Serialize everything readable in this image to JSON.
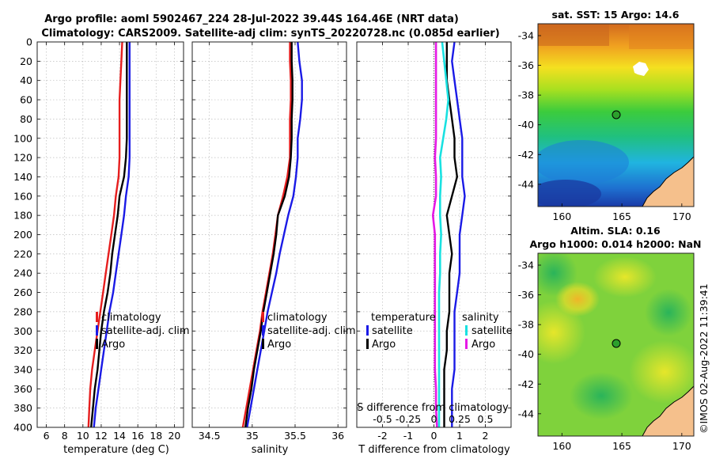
{
  "figure": {
    "title_line1": "Argo profile: aoml 5902467_224 28-Jul-2022 39.44S 164.46E (NRT data)",
    "title_line2": "Climatology: CARS2009. Satellite-adj clim: synTS_20220728.nc (0.085d earlier)",
    "watermark": "©IMOS 02-Aug-2022 11:39:41"
  },
  "colors": {
    "climatology": "#e61e1e",
    "satellite": "#1a1ae6",
    "argo": "#000000",
    "salinity_satellite": "#19e1e1",
    "salinity_argo": "#e619e6"
  },
  "chart_data": [
    {
      "type": "line",
      "name": "temperature",
      "xlabel": "temperature (deg C)",
      "xlim": [
        5,
        21
      ],
      "xticks": [
        6,
        8,
        10,
        12,
        14,
        16,
        18,
        20
      ],
      "ylim": [
        0,
        400
      ],
      "yticks": [
        0,
        20,
        40,
        60,
        80,
        100,
        120,
        140,
        160,
        180,
        200,
        220,
        240,
        260,
        280,
        300,
        320,
        340,
        360,
        380,
        400
      ],
      "y_reversed": true,
      "legend": [
        "climatology",
        "satellite-adj. clim",
        "Argo"
      ],
      "legend_position": "lower-center",
      "series": [
        {
          "name": "climatology",
          "color": "#e61e1e",
          "x": [
            14.3,
            14.2,
            14.1,
            14.0,
            14.0,
            14.0,
            14.0,
            13.9,
            13.6,
            13.4,
            13.1,
            12.8,
            12.5,
            12.2,
            11.9,
            11.6,
            11.3,
            11.0,
            10.8,
            10.7,
            10.6
          ],
          "y": [
            0,
            20,
            40,
            60,
            80,
            100,
            120,
            140,
            160,
            180,
            200,
            220,
            240,
            260,
            280,
            300,
            320,
            340,
            360,
            380,
            400
          ]
        },
        {
          "name": "satellite-adj. clim",
          "color": "#1a1ae6",
          "x": [
            15.1,
            15.1,
            15.1,
            15.1,
            15.1,
            15.1,
            15.1,
            15.0,
            14.7,
            14.5,
            14.2,
            13.9,
            13.6,
            13.3,
            12.9,
            12.6,
            12.3,
            12.0,
            11.7,
            11.4,
            11.2
          ],
          "y": [
            0,
            20,
            40,
            60,
            80,
            100,
            120,
            140,
            160,
            180,
            200,
            220,
            240,
            260,
            280,
            300,
            320,
            340,
            360,
            380,
            400
          ]
        },
        {
          "name": "Argo",
          "color": "#000000",
          "x": [
            14.8,
            14.8,
            14.8,
            14.8,
            14.8,
            14.8,
            14.7,
            14.5,
            14.0,
            13.8,
            13.5,
            13.2,
            13.0,
            12.7,
            12.3,
            12.0,
            11.8,
            11.6,
            11.3,
            11.1,
            10.9
          ],
          "y": [
            0,
            20,
            40,
            60,
            80,
            100,
            120,
            140,
            160,
            180,
            200,
            220,
            240,
            260,
            280,
            300,
            320,
            340,
            360,
            380,
            400
          ]
        }
      ]
    },
    {
      "type": "line",
      "name": "salinity",
      "xlabel": "salinity",
      "xlim": [
        34.3,
        36.1
      ],
      "xticks": [
        34.5,
        35,
        35.5,
        36
      ],
      "xtick_labels": [
        "34.5",
        "35",
        "35.5",
        "36"
      ],
      "ylim": [
        0,
        400
      ],
      "y_reversed": true,
      "legend": [
        "climatology",
        "satellite-adj. clim",
        "Argo"
      ],
      "legend_position": "lower-center",
      "series": [
        {
          "name": "climatology",
          "color": "#e61e1e",
          "x": [
            35.44,
            35.44,
            35.45,
            35.45,
            35.44,
            35.44,
            35.44,
            35.41,
            35.36,
            35.3,
            35.27,
            35.24,
            35.2,
            35.16,
            35.12,
            35.09,
            35.05,
            35.01,
            34.97,
            34.93,
            34.89
          ],
          "y": [
            0,
            20,
            40,
            60,
            80,
            100,
            120,
            140,
            160,
            180,
            200,
            220,
            240,
            260,
            280,
            300,
            320,
            340,
            360,
            380,
            400
          ]
        },
        {
          "name": "satellite-adj. clim",
          "color": "#1a1ae6",
          "x": [
            35.53,
            35.55,
            35.58,
            35.58,
            35.56,
            35.53,
            35.53,
            35.51,
            35.48,
            35.42,
            35.37,
            35.32,
            35.28,
            35.23,
            35.18,
            35.14,
            35.1,
            35.06,
            35.02,
            34.98,
            34.94
          ],
          "y": [
            0,
            20,
            40,
            60,
            80,
            100,
            120,
            140,
            160,
            180,
            200,
            220,
            240,
            260,
            280,
            300,
            320,
            340,
            360,
            380,
            400
          ]
        },
        {
          "name": "Argo",
          "color": "#000000",
          "x": [
            35.46,
            35.46,
            35.47,
            35.47,
            35.46,
            35.46,
            35.45,
            35.43,
            35.38,
            35.3,
            35.28,
            35.25,
            35.21,
            35.17,
            35.13,
            35.1,
            35.06,
            35.02,
            34.99,
            34.95,
            34.92
          ],
          "y": [
            0,
            20,
            40,
            60,
            80,
            100,
            120,
            140,
            160,
            180,
            200,
            220,
            240,
            260,
            280,
            300,
            320,
            340,
            360,
            380,
            400
          ]
        }
      ]
    },
    {
      "type": "line",
      "name": "difference from climatology",
      "xlabel": "T difference from climatology",
      "xlim": [
        -3,
        3
      ],
      "xticks": [
        -2,
        -1,
        0,
        1,
        2
      ],
      "xtick_labels": [
        "-2",
        "-1",
        "0",
        "1",
        "2"
      ],
      "secondary_xlabel": "S difference from climatology",
      "secondary_xticks": [
        -0.5,
        -0.25,
        0,
        0.25,
        0.5
      ],
      "secondary_xtick_labels": [
        "-0.5",
        "-0.25",
        "0",
        "0.25",
        "0.5"
      ],
      "secondary_xlim": [
        -0.75,
        0.75
      ],
      "ylim": [
        0,
        400
      ],
      "y_reversed": true,
      "legend_temperature": [
        "temperature",
        "satellite",
        "Argo"
      ],
      "legend_salinity": [
        "salinity",
        "satellite",
        "Argo"
      ],
      "series": [
        {
          "name": "temperature satellite",
          "axis": "T",
          "color": "#1a1ae6",
          "x": [
            0.8,
            0.7,
            0.8,
            0.9,
            1.0,
            1.1,
            1.1,
            1.1,
            1.2,
            1.1,
            1.0,
            1.0,
            1.0,
            0.9,
            0.8,
            0.8,
            0.8,
            0.8,
            0.7,
            0.7,
            0.7
          ],
          "y": [
            0,
            20,
            40,
            60,
            80,
            100,
            120,
            140,
            160,
            180,
            200,
            220,
            240,
            260,
            280,
            300,
            320,
            340,
            360,
            380,
            400
          ]
        },
        {
          "name": "temperature Argo",
          "axis": "T",
          "color": "#000000",
          "x": [
            0.5,
            0.5,
            0.5,
            0.6,
            0.7,
            0.8,
            0.8,
            0.9,
            0.7,
            0.5,
            0.6,
            0.7,
            0.6,
            0.6,
            0.6,
            0.5,
            0.5,
            0.4,
            0.4,
            0.4,
            0.4
          ],
          "y": [
            0,
            20,
            40,
            60,
            80,
            100,
            120,
            140,
            160,
            180,
            200,
            220,
            240,
            260,
            280,
            300,
            320,
            340,
            360,
            380,
            400
          ]
        },
        {
          "name": "salinity satellite",
          "axis": "S",
          "color": "#19e1e1",
          "x": [
            0.08,
            0.1,
            0.12,
            0.14,
            0.12,
            0.09,
            0.06,
            0.07,
            0.06,
            0.06,
            0.07,
            0.06,
            0.06,
            0.05,
            0.05,
            0.05,
            0.05,
            0.05,
            0.05,
            0.05,
            0.05
          ],
          "y": [
            0,
            20,
            40,
            60,
            80,
            100,
            120,
            140,
            160,
            180,
            200,
            220,
            240,
            260,
            280,
            300,
            320,
            340,
            360,
            380,
            400
          ]
        },
        {
          "name": "salinity Argo",
          "axis": "S",
          "color": "#e619e6",
          "x": [
            0.02,
            0.02,
            0.02,
            0.02,
            0.02,
            0.02,
            0.01,
            0.02,
            0.02,
            -0.01,
            0.01,
            0.01,
            0.01,
            0.01,
            0.01,
            0.01,
            0.01,
            0.01,
            0.02,
            0.02,
            0.03
          ],
          "y": [
            0,
            20,
            40,
            60,
            80,
            100,
            120,
            140,
            160,
            180,
            200,
            220,
            240,
            260,
            280,
            300,
            320,
            340,
            360,
            380,
            400
          ]
        }
      ]
    },
    {
      "type": "heatmap",
      "name": "sst_map",
      "title": "sat. SST: 15 Argo: 14.6",
      "xlim": [
        158,
        171
      ],
      "ylim": [
        -45.5,
        -33.2
      ],
      "xticks": [
        160,
        165,
        170
      ],
      "yticks": [
        -34,
        -36,
        -38,
        -40,
        -42,
        -44
      ],
      "marker": {
        "lon": 164.46,
        "lat": -39.44
      }
    },
    {
      "type": "heatmap",
      "name": "sla_map",
      "title_line1": "Altim. SLA: 0.16",
      "title_line2": "Argo h1000: 0.014 h2000: NaN",
      "xlim": [
        158,
        171
      ],
      "ylim": [
        -45.5,
        -33.2
      ],
      "xticks": [
        160,
        165,
        170
      ],
      "yticks": [
        -34,
        -36,
        -38,
        -40,
        -42,
        -44
      ],
      "marker": {
        "lon": 164.46,
        "lat": -39.44
      }
    }
  ]
}
